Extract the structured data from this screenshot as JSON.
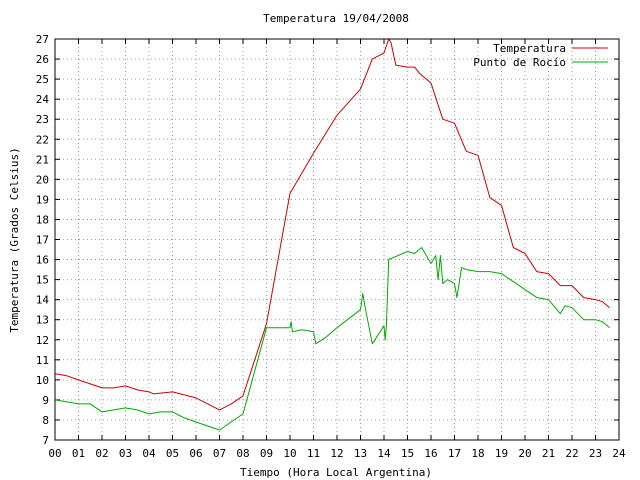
{
  "chart_data": {
    "type": "line",
    "title": "Temperatura 19/04/2008",
    "xlabel": "Tiempo (Hora Local Argentina)",
    "ylabel": "Temperatura (Grados Celsius)",
    "xlim": [
      0,
      24
    ],
    "ylim": [
      7,
      27
    ],
    "x_ticks": [
      "00",
      "01",
      "02",
      "03",
      "04",
      "05",
      "06",
      "07",
      "08",
      "09",
      "10",
      "11",
      "12",
      "13",
      "14",
      "15",
      "16",
      "17",
      "18",
      "19",
      "20",
      "21",
      "22",
      "23",
      "24"
    ],
    "y_ticks": [
      "7",
      "8",
      "9",
      "10",
      "11",
      "12",
      "13",
      "14",
      "15",
      "16",
      "17",
      "18",
      "19",
      "20",
      "21",
      "22",
      "23",
      "24",
      "25",
      "26",
      "27"
    ],
    "grid": true,
    "legend_position": "top-right",
    "series": [
      {
        "name": "Temperatura",
        "color": "#cc0000",
        "points": [
          [
            0.0,
            10.3
          ],
          [
            0.5,
            10.2
          ],
          [
            1.0,
            10.0
          ],
          [
            1.5,
            9.8
          ],
          [
            2.0,
            9.6
          ],
          [
            2.5,
            9.6
          ],
          [
            3.0,
            9.7
          ],
          [
            3.5,
            9.5
          ],
          [
            4.0,
            9.4
          ],
          [
            4.2,
            9.3
          ],
          [
            5.0,
            9.4
          ],
          [
            6.0,
            9.1
          ],
          [
            7.0,
            8.5
          ],
          [
            7.5,
            8.8
          ],
          [
            8.0,
            9.2
          ],
          [
            9.0,
            12.8
          ],
          [
            10.0,
            19.3
          ],
          [
            11.0,
            21.3
          ],
          [
            12.0,
            23.2
          ],
          [
            13.0,
            24.5
          ],
          [
            13.5,
            26.0
          ],
          [
            14.0,
            26.3
          ],
          [
            14.2,
            27.0
          ],
          [
            14.3,
            26.8
          ],
          [
            14.5,
            25.7
          ],
          [
            15.0,
            25.6
          ],
          [
            15.3,
            25.6
          ],
          [
            15.5,
            25.3
          ],
          [
            16.0,
            24.8
          ],
          [
            16.5,
            23.0
          ],
          [
            17.0,
            22.8
          ],
          [
            17.5,
            21.4
          ],
          [
            18.0,
            21.2
          ],
          [
            18.5,
            19.1
          ],
          [
            19.0,
            18.7
          ],
          [
            19.5,
            16.6
          ],
          [
            20.0,
            16.3
          ],
          [
            20.5,
            15.4
          ],
          [
            21.0,
            15.3
          ],
          [
            21.5,
            14.7
          ],
          [
            22.0,
            14.7
          ],
          [
            22.5,
            14.1
          ],
          [
            23.0,
            14.0
          ],
          [
            23.3,
            13.9
          ],
          [
            23.6,
            13.6
          ]
        ]
      },
      {
        "name": "Punto de Rocío",
        "color": "#00aa00",
        "points": [
          [
            0.0,
            9.0
          ],
          [
            0.5,
            8.9
          ],
          [
            1.0,
            8.8
          ],
          [
            1.5,
            8.8
          ],
          [
            2.0,
            8.4
          ],
          [
            2.5,
            8.5
          ],
          [
            3.0,
            8.6
          ],
          [
            3.5,
            8.5
          ],
          [
            4.0,
            8.3
          ],
          [
            4.5,
            8.4
          ],
          [
            5.0,
            8.4
          ],
          [
            5.5,
            8.1
          ],
          [
            6.0,
            7.9
          ],
          [
            7.0,
            7.5
          ],
          [
            8.0,
            8.3
          ],
          [
            9.0,
            12.6
          ],
          [
            10.0,
            12.6
          ],
          [
            10.05,
            12.9
          ],
          [
            10.1,
            12.4
          ],
          [
            10.5,
            12.5
          ],
          [
            11.0,
            12.4
          ],
          [
            11.1,
            11.8
          ],
          [
            11.5,
            12.1
          ],
          [
            12.0,
            12.6
          ],
          [
            13.0,
            13.5
          ],
          [
            13.1,
            14.3
          ],
          [
            13.2,
            13.6
          ],
          [
            13.5,
            11.8
          ],
          [
            14.0,
            12.7
          ],
          [
            14.05,
            12.0
          ],
          [
            14.1,
            12.7
          ],
          [
            14.2,
            16.0
          ],
          [
            15.0,
            16.4
          ],
          [
            15.3,
            16.3
          ],
          [
            15.6,
            16.6
          ],
          [
            16.0,
            15.8
          ],
          [
            16.2,
            16.2
          ],
          [
            16.3,
            15.0
          ],
          [
            16.4,
            16.2
          ],
          [
            16.5,
            14.8
          ],
          [
            16.7,
            15.0
          ],
          [
            17.0,
            14.8
          ],
          [
            17.1,
            14.1
          ],
          [
            17.3,
            15.6
          ],
          [
            17.5,
            15.5
          ],
          [
            18.0,
            15.4
          ],
          [
            18.5,
            15.4
          ],
          [
            19.0,
            15.3
          ],
          [
            19.5,
            14.9
          ],
          [
            20.0,
            14.5
          ],
          [
            20.5,
            14.1
          ],
          [
            21.0,
            14.0
          ],
          [
            21.5,
            13.3
          ],
          [
            21.7,
            13.7
          ],
          [
            22.0,
            13.6
          ],
          [
            22.5,
            13.0
          ],
          [
            23.0,
            13.0
          ],
          [
            23.3,
            12.9
          ],
          [
            23.6,
            12.6
          ]
        ]
      }
    ]
  }
}
